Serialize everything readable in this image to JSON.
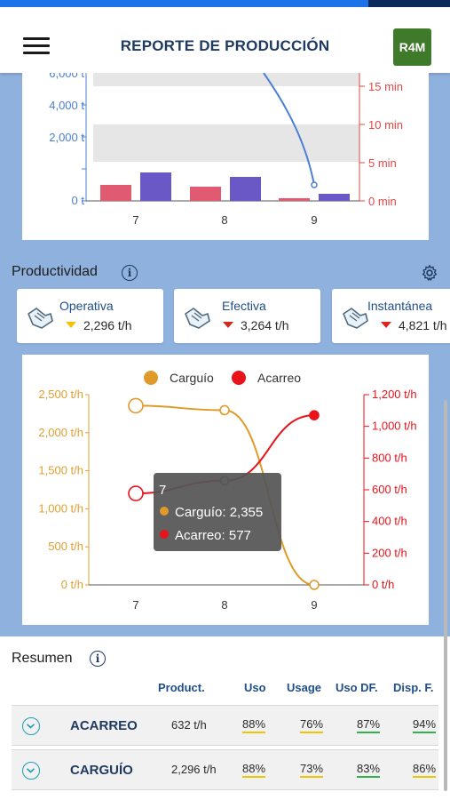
{
  "header": {
    "title": "REPORTE DE PRODUCCIÓN",
    "logo_text": "R4M"
  },
  "chart_top": {
    "left_ticks": [
      "6,000 t",
      "4,000 t",
      "2,000 t",
      "0 t"
    ],
    "right_ticks": [
      "15 min",
      "10 min",
      "5 min",
      "0 min"
    ],
    "categories": [
      "7",
      "8",
      "9"
    ]
  },
  "productividad": {
    "title": "Productividad",
    "kpis": [
      {
        "title": "Operativa",
        "value": "2,296 t/h",
        "trend": "down",
        "trend_color": "#f2c300"
      },
      {
        "title": "Efectiva",
        "value": "3,264 t/h",
        "trend": "down",
        "trend_color": "#d9261c"
      },
      {
        "title": "Instantánea",
        "value": "4,821 t/h",
        "trend": "down",
        "trend_color": "#d9261c"
      }
    ]
  },
  "chart_data": {
    "type": "line",
    "categories": [
      "7",
      "8",
      "9"
    ],
    "series": [
      {
        "name": "Carguío",
        "axis": "left",
        "color": "#e09a2a",
        "values": [
          2355,
          2296,
          0
        ]
      },
      {
        "name": "Acarreo",
        "axis": "right",
        "color": "#e8131b",
        "values": [
          577,
          657,
          1070
        ]
      }
    ],
    "left_axis": {
      "ticks": [
        "2,500 t/h",
        "2,000 t/h",
        "1,500 t/h",
        "1,000 t/h",
        "500 t/h",
        "0 t/h"
      ],
      "range": [
        0,
        2500
      ]
    },
    "right_axis": {
      "ticks": [
        "1,200 t/h",
        "1,000 t/h",
        "800 t/h",
        "600 t/h",
        "400 t/h",
        "200 t/h",
        "0 t/h"
      ],
      "range": [
        0,
        1200
      ]
    },
    "legend": [
      "Carguío",
      "Acarreo"
    ],
    "legend_position": "top",
    "tooltip": {
      "title": "7",
      "lines": [
        "Carguío: 2,355",
        "Acarreo: 577"
      ]
    }
  },
  "resumen": {
    "title": "Resumen",
    "columns": [
      "Product.",
      "Uso",
      "Usage",
      "Uso DF.",
      "Disp. F."
    ],
    "rows": [
      {
        "name": "ACARREO",
        "product": "632 t/h",
        "uso": "88%",
        "usage": "76%",
        "uso_df": "87%",
        "disp_f": "94%"
      },
      {
        "name": "CARGUÍO",
        "product": "2,296 t/h",
        "uso": "88%",
        "usage": "73%",
        "uso_df": "83%",
        "disp_f": "86%"
      }
    ]
  }
}
